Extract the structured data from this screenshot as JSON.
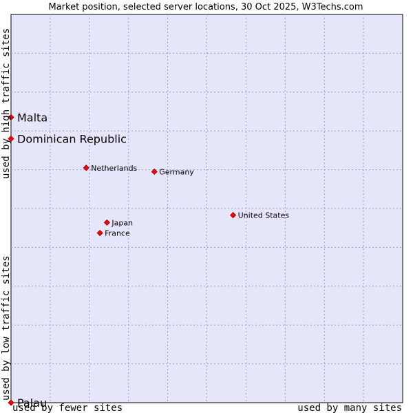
{
  "chart_data": {
    "type": "scatter",
    "title": "Market position, selected server locations, 30 Oct 2025, W3Techs.com",
    "xlabel_low": "used by fewer sites",
    "xlabel_high": "used by many sites",
    "ylabel_low": "used by low traffic sites",
    "ylabel_high": "used by high traffic sites",
    "xlim": [
      0,
      100
    ],
    "ylim": [
      0,
      100
    ],
    "grid": true,
    "colors": {
      "plot_background": "#e6e6fa",
      "grid": "#9a9ab4",
      "point": "#ff0000",
      "point_outline": "#880000"
    },
    "points": [
      {
        "name": "Malta",
        "x": 0,
        "y": 73.5,
        "emphasis": true
      },
      {
        "name": "Dominican Republic",
        "x": 0,
        "y": 68,
        "emphasis": true
      },
      {
        "name": "Netherlands",
        "x": 19.2,
        "y": 60.5,
        "emphasis": false
      },
      {
        "name": "Germany",
        "x": 36.6,
        "y": 59.5,
        "emphasis": false
      },
      {
        "name": "United States",
        "x": 56.7,
        "y": 48.3,
        "emphasis": false
      },
      {
        "name": "Japan",
        "x": 24.5,
        "y": 46.4,
        "emphasis": false
      },
      {
        "name": "France",
        "x": 22.7,
        "y": 43.7,
        "emphasis": false
      },
      {
        "name": "Palau",
        "x": 0,
        "y": 0,
        "emphasis": true
      }
    ]
  }
}
